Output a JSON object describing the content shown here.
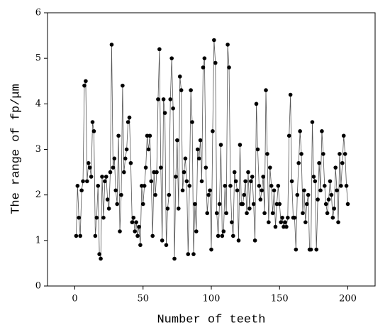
{
  "chart_data": {
    "type": "line",
    "xlabel": "Number of teeth",
    "ylabel": "The range of fp/μm",
    "xlim": [
      -20,
      220
    ],
    "xticks": [
      0,
      50,
      100,
      150,
      200
    ],
    "ylim": [
      0,
      6
    ],
    "yticks": [
      0,
      1,
      2,
      3,
      4,
      5,
      6
    ],
    "x": [
      1,
      2,
      3,
      4,
      5,
      6,
      7,
      8,
      9,
      10,
      11,
      12,
      13,
      14,
      15,
      16,
      17,
      18,
      19,
      20,
      21,
      22,
      23,
      24,
      25,
      26,
      27,
      28,
      29,
      30,
      31,
      32,
      33,
      34,
      35,
      36,
      37,
      38,
      39,
      40,
      41,
      42,
      43,
      44,
      45,
      46,
      47,
      48,
      49,
      50,
      51,
      52,
      53,
      54,
      55,
      56,
      57,
      58,
      59,
      60,
      61,
      62,
      63,
      64,
      65,
      66,
      67,
      68,
      69,
      70,
      71,
      72,
      73,
      74,
      75,
      76,
      77,
      78,
      79,
      80,
      81,
      82,
      83,
      84,
      85,
      86,
      87,
      88,
      89,
      90,
      91,
      92,
      93,
      94,
      95,
      96,
      97,
      98,
      99,
      100,
      101,
      102,
      103,
      104,
      105,
      106,
      107,
      108,
      109,
      110,
      111,
      112,
      113,
      114,
      115,
      116,
      117,
      118,
      119,
      120,
      121,
      122,
      123,
      124,
      125,
      126,
      127,
      128,
      129,
      130,
      131,
      132,
      133,
      134,
      135,
      136,
      137,
      138,
      139,
      140,
      141,
      142,
      143,
      144,
      145,
      146,
      147,
      148,
      149,
      150,
      151,
      152,
      153,
      154,
      155,
      156,
      157,
      158,
      159,
      160,
      161,
      162,
      163,
      164,
      165,
      166,
      167,
      168,
      169,
      170,
      171,
      172,
      173,
      174,
      175,
      176,
      177,
      178,
      179,
      180,
      181,
      182,
      183,
      184,
      185,
      186,
      187,
      188,
      189,
      190,
      191,
      192,
      193,
      194,
      195,
      196,
      197,
      198,
      199,
      200
    ],
    "series": [
      {
        "color": "#000000",
        "line_color": "#555555",
        "values": [
          1.1,
          2.2,
          1.5,
          1.1,
          2.1,
          2.3,
          4.4,
          4.5,
          2.3,
          2.7,
          2.6,
          2.4,
          3.6,
          3.4,
          1.1,
          1.5,
          2.2,
          0.7,
          0.6,
          2.4,
          1.5,
          2.3,
          2.4,
          1.9,
          1.7,
          2.5,
          5.3,
          2.6,
          2.8,
          2.1,
          1.8,
          3.3,
          1.2,
          2.0,
          4.4,
          2.5,
          2.8,
          3.0,
          3.6,
          3.7,
          2.7,
          1.4,
          1.5,
          1.2,
          1.4,
          1.1,
          1.3,
          0.9,
          2.2,
          1.8,
          2.2,
          2.6,
          3.3,
          3.0,
          3.3,
          2.3,
          1.1,
          2.5,
          2.0,
          2.5,
          4.1,
          5.2,
          2.6,
          1.0,
          4.1,
          3.8,
          0.9,
          1.7,
          2.0,
          4.1,
          5.0,
          3.9,
          0.6,
          2.4,
          3.2,
          1.7,
          4.6,
          4.3,
          2.1,
          2.5,
          2.8,
          2.3,
          0.7,
          2.2,
          4.3,
          3.6,
          0.7,
          1.8,
          1.2,
          3.0,
          2.8,
          3.2,
          2.3,
          4.8,
          5.0,
          2.6,
          1.6,
          2.0,
          2.1,
          0.8,
          3.4,
          5.4,
          4.9,
          1.6,
          1.1,
          1.8,
          3.1,
          1.1,
          1.2,
          2.2,
          1.6,
          5.3,
          4.8,
          2.2,
          1.4,
          1.1,
          2.5,
          2.3,
          2.1,
          1.0,
          3.1,
          1.8,
          1.8,
          2.0,
          2.3,
          1.6,
          2.5,
          1.7,
          2.3,
          2.4,
          1.8,
          1.0,
          4.0,
          3.0,
          2.2,
          1.9,
          2.1,
          2.4,
          1.6,
          4.3,
          2.9,
          1.4,
          2.6,
          2.2,
          1.6,
          2.1,
          1.3,
          1.8,
          2.2,
          1.8,
          1.4,
          1.5,
          1.3,
          1.4,
          1.3,
          1.5,
          3.3,
          4.2,
          2.3,
          1.5,
          1.5,
          0.8,
          2.0,
          2.7,
          3.4,
          2.9,
          1.6,
          2.1,
          1.4,
          1.8,
          2.0,
          0.8,
          0.8,
          3.6,
          2.4,
          2.3,
          0.8,
          1.9,
          2.7,
          2.1,
          3.4,
          2.9,
          2.2,
          1.8,
          1.6,
          1.9,
          2.3,
          2.0,
          1.5,
          1.7,
          2.6,
          2.1,
          1.4,
          2.9,
          2.2,
          2.7,
          3.3,
          2.9,
          2.2,
          1.8
        ]
      }
    ]
  }
}
